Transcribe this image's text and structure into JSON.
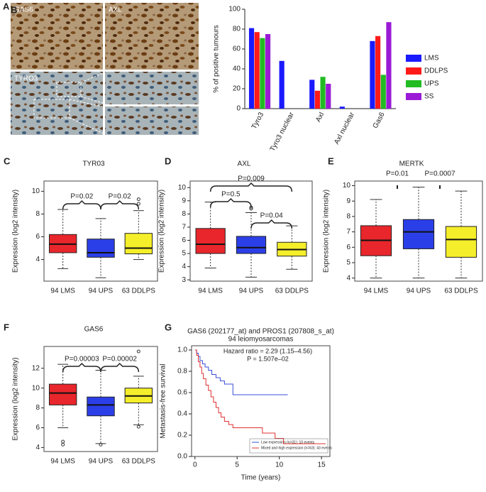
{
  "panel_a": {
    "panel": "A",
    "images": [
      "GAS6",
      "AXL",
      "TYRO3"
    ]
  },
  "chart_data": [
    {
      "type": "bar",
      "panel": "B",
      "ylabel": "% of positive tumours",
      "categories": [
        "Tyro3",
        "Tyro3 nuclear",
        "Axl",
        "Axl nuclear",
        "Gas6"
      ],
      "series": [
        {
          "name": "LMS",
          "color": "#1a1aff",
          "values": [
            81,
            48,
            29,
            2,
            68
          ]
        },
        {
          "name": "DDLPS",
          "color": "#ff1a1a",
          "values": [
            77,
            0,
            18,
            0,
            73
          ]
        },
        {
          "name": "UPS",
          "color": "#22bb22",
          "values": [
            71,
            0,
            32,
            0,
            34
          ]
        },
        {
          "name": "SS",
          "color": "#9b1ad6",
          "values": [
            75,
            0,
            25,
            0,
            87
          ]
        }
      ],
      "ylim": [
        0,
        100
      ],
      "yticks": [
        0,
        20,
        40,
        60,
        80,
        100
      ],
      "legend": "right"
    },
    {
      "type": "box",
      "panel": "C",
      "title": "TYR03",
      "ylabel": "Expression (log2 intensity)",
      "categories": [
        "94 LMS",
        "94 UPS",
        "63 DDLPS"
      ],
      "colors": [
        "#e8262b",
        "#2b3fe8",
        "#f5ee2a"
      ],
      "boxes": [
        {
          "min": 3.2,
          "q1": 4.6,
          "median": 5.35,
          "q3": 6.2,
          "max": 8.4,
          "outliers": []
        },
        {
          "min": 2.4,
          "q1": 4.2,
          "median": 4.6,
          "q3": 5.8,
          "max": 7.6,
          "outliers": []
        },
        {
          "min": 4.0,
          "q1": 4.5,
          "median": 5.0,
          "q3": 6.3,
          "max": 8.3,
          "outliers": [
            8.9,
            9.3
          ]
        }
      ],
      "annotations": [
        "P=0.02",
        "P=0.02"
      ],
      "ylim": [
        2.1,
        10.9
      ],
      "yticks": [
        4,
        6,
        8,
        10
      ]
    },
    {
      "type": "box",
      "panel": "D",
      "title": "AXL",
      "ylabel": "Expression (log2 intensity)",
      "categories": [
        "94 LMS",
        "94 UPS",
        "63 DDLPS"
      ],
      "colors": [
        "#e8262b",
        "#2b3fe8",
        "#f5ee2a"
      ],
      "boxes": [
        {
          "min": 3.9,
          "q1": 5.0,
          "median": 5.7,
          "q3": 6.9,
          "max": 8.9,
          "outliers": []
        },
        {
          "min": 3.2,
          "q1": 5.0,
          "median": 5.45,
          "q3": 6.3,
          "max": 8.1,
          "outliers": [
            8.4,
            8.5
          ]
        },
        {
          "min": 3.8,
          "q1": 4.8,
          "median": 5.3,
          "q3": 5.85,
          "max": 7.1,
          "outliers": []
        }
      ],
      "annotations": [
        "P=0.009",
        "P=0.5",
        "P=0.04"
      ],
      "ylim": [
        2.9,
        10.5
      ],
      "yticks": [
        3,
        4,
        5,
        6,
        7,
        8,
        9,
        10
      ]
    },
    {
      "type": "box",
      "panel": "E",
      "title": "MERTK",
      "ylabel": "Expression (log2 intensity)",
      "categories": [
        "94 LMS",
        "94 UPS",
        "63 DDLPS"
      ],
      "colors": [
        "#e8262b",
        "#2b3fe8",
        "#f5ee2a"
      ],
      "boxes": [
        {
          "min": 4.0,
          "q1": 5.45,
          "median": 6.45,
          "q3": 7.4,
          "max": 9.1,
          "outliers": []
        },
        {
          "min": 4.0,
          "q1": 5.9,
          "median": 7.0,
          "q3": 7.8,
          "max": 9.9,
          "outliers": []
        },
        {
          "min": 4.0,
          "q1": 5.35,
          "median": 6.5,
          "q3": 7.35,
          "max": 9.65,
          "outliers": []
        }
      ],
      "annotations": [
        "P=0.01",
        "P=0.0007"
      ],
      "ylim": [
        3.8,
        10.3
      ],
      "yticks": [
        4,
        5,
        6,
        7,
        8,
        9,
        10
      ]
    },
    {
      "type": "box",
      "panel": "F",
      "title": "GAS6",
      "ylabel": "Expression (log2 intensity)",
      "categories": [
        "94 LMS",
        "94 UPS",
        "63 DDLPS"
      ],
      "colors": [
        "#e8262b",
        "#2b3fe8",
        "#f5ee2a"
      ],
      "boxes": [
        {
          "min": 6.0,
          "q1": 8.3,
          "median": 9.5,
          "q3": 10.4,
          "max": 12.4,
          "outliers": [
            4.3,
            4.6
          ]
        },
        {
          "min": 4.4,
          "q1": 7.2,
          "median": 8.3,
          "q3": 9.1,
          "max": 11.8,
          "outliers": [
            4.3
          ]
        },
        {
          "min": 6.3,
          "q1": 8.5,
          "median": 9.2,
          "q3": 10.0,
          "max": 11.2,
          "outliers": [
            6.1,
            13.7
          ]
        }
      ],
      "annotations": [
        "P=0.00003",
        "P=0.00002"
      ],
      "ylim": [
        3.6,
        14.2
      ],
      "yticks": [
        4,
        6,
        8,
        10,
        12
      ]
    },
    {
      "type": "survival",
      "panel": "G",
      "title": "GAS6 (202177_at) and PROS1 (207808_s_at)",
      "subtitle": "94 leiomyosarcomas",
      "annotations": [
        "Hazard ratio = 2.29 (1.15–4.56)",
        "P = 1.507e–02"
      ],
      "xlabel": "Time (years)",
      "ylabel": "Metastasis-free survival",
      "series": [
        {
          "name": "Low expression (n=31): 10 events",
          "color": "#3a4fd8",
          "x": [
            0,
            0.2,
            0.4,
            0.6,
            0.9,
            1.2,
            1.6,
            2,
            2.5,
            3,
            3.5,
            4.5,
            11
          ],
          "values": [
            1,
            0.97,
            0.94,
            0.9,
            0.87,
            0.84,
            0.81,
            0.77,
            0.74,
            0.71,
            0.68,
            0.58,
            0.58
          ]
        },
        {
          "name": "Mixed and high expression (n=63): 43 events",
          "color": "#e03030",
          "x": [
            0,
            0.2,
            0.4,
            0.6,
            0.8,
            1,
            1.3,
            1.6,
            1.9,
            2.2,
            2.5,
            2.8,
            3.1,
            3.5,
            4,
            4.5,
            8,
            9.5,
            10.5,
            15.5
          ],
          "values": [
            1,
            0.95,
            0.89,
            0.84,
            0.78,
            0.73,
            0.67,
            0.62,
            0.56,
            0.51,
            0.46,
            0.41,
            0.37,
            0.33,
            0.3,
            0.27,
            0.22,
            0.17,
            0.12,
            0.12
          ]
        }
      ],
      "xlim": [
        -0.4,
        16
      ],
      "xticks": [
        0,
        5,
        10,
        15
      ],
      "ylim": [
        0,
        1.04
      ],
      "yticks": [
        {
          "value": 0,
          "label": "0.0"
        },
        {
          "value": 0.2,
          "label": "0.2"
        },
        {
          "value": 0.4,
          "label": "0.4"
        },
        {
          "value": 0.6,
          "label": "0.6"
        },
        {
          "value": 0.8,
          "label": "0.8"
        },
        {
          "value": 1,
          "label": "1.0"
        }
      ]
    }
  ]
}
